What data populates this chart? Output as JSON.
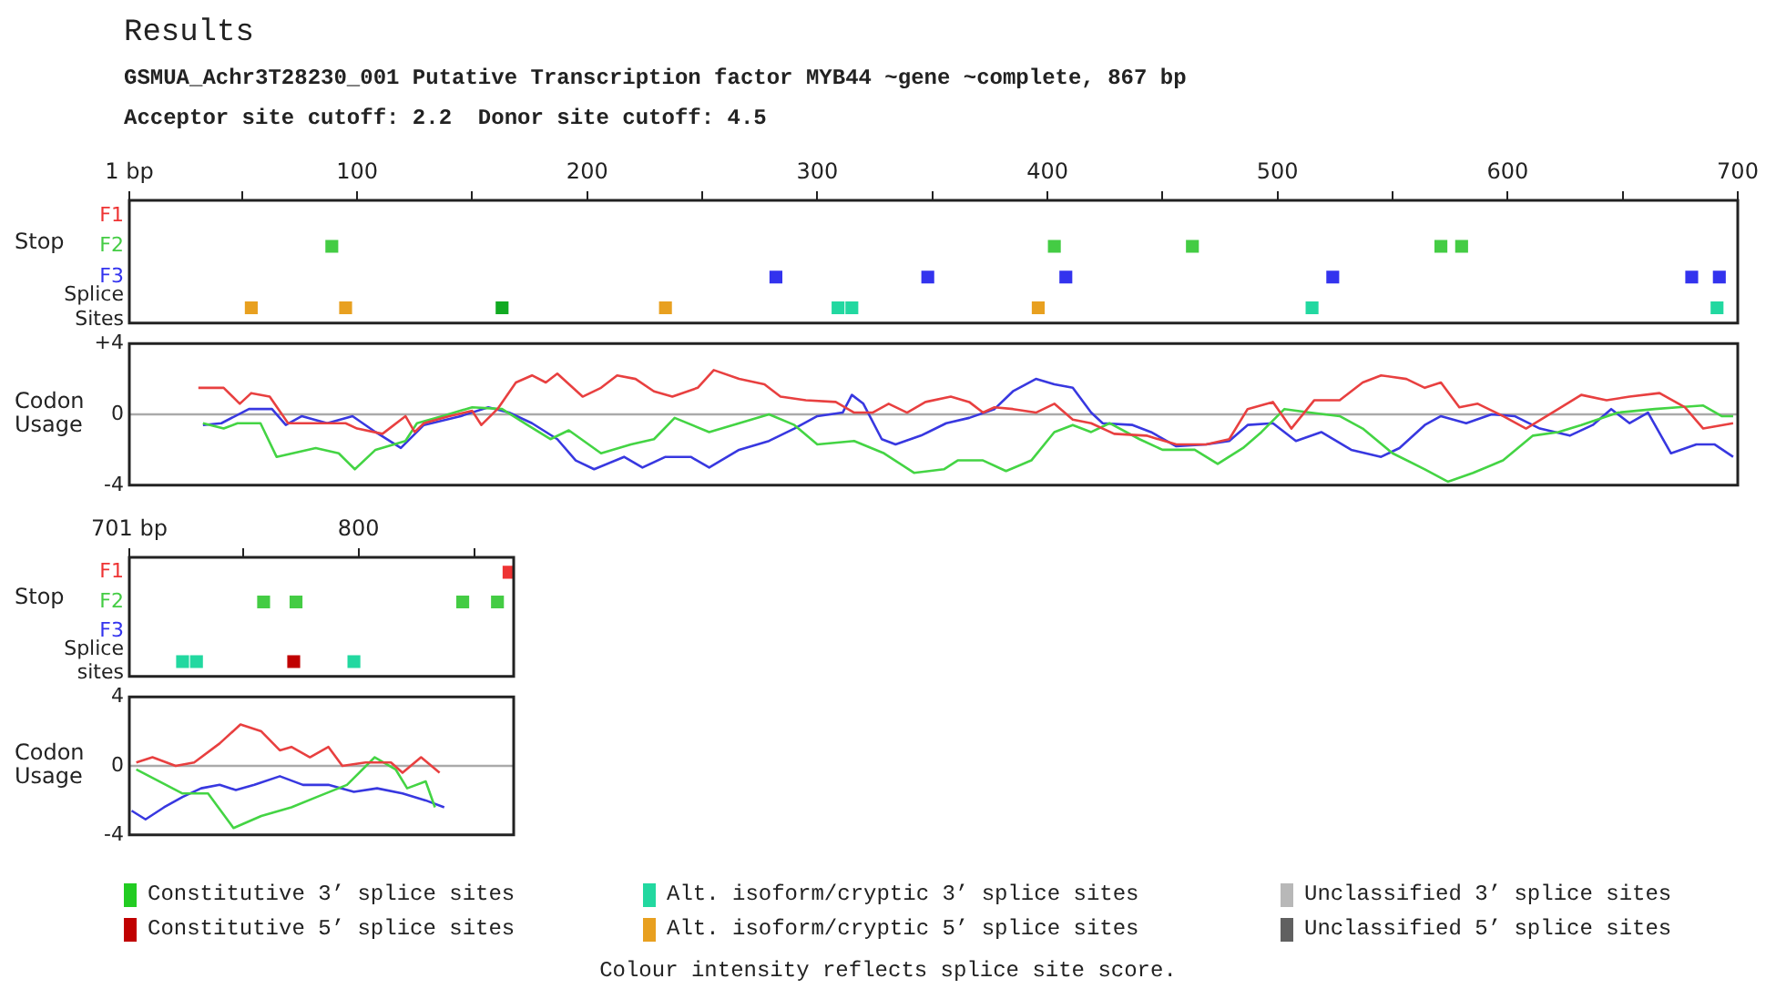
{
  "chart_data": [
    {
      "type": "scatter",
      "orientation": "horizontal",
      "title": "Results",
      "subtitle": "GSMUA_Achr3T28230_001 Putative Transcription factor MYB44 ~gene ~complete, 867 bp\nAcceptor site cutoff: 2.2  Donor site cutoff: 4.5",
      "ylabel": "Stop",
      "categories": [
        "F1",
        "F2",
        "F3",
        "Splice Sites"
      ],
      "xlim": [
        1,
        700
      ],
      "xticks": [
        {
          "value": 1,
          "label": "1 bp"
        },
        {
          "value": 50,
          "label": null
        },
        100,
        {
          "value": 150,
          "label": null
        },
        200,
        {
          "value": 250,
          "label": null
        },
        300,
        {
          "value": 350,
          "label": null
        },
        400,
        {
          "value": 450,
          "label": null
        },
        500,
        {
          "value": 550,
          "label": null
        },
        600,
        {
          "value": 650,
          "label": null
        },
        700
      ],
      "marker": "square",
      "series": [
        {
          "color": "#ee3333",
          "values": [
            null,
            null,
            null,
            null
          ]
        },
        {
          "color": "#44cc44",
          "x": [
            "F2",
            "F2",
            "F2",
            "F2",
            "F2"
          ],
          "values": [
            89,
            403,
            463,
            571,
            580
          ]
        },
        {
          "color": "#3333ee",
          "x": [
            "F3",
            "F3",
            "F3",
            "F3",
            "F3",
            "F3"
          ],
          "values": [
            282,
            348,
            408,
            524,
            680,
            692
          ]
        },
        {
          "color": "#11aa22",
          "marker": "square",
          "x": [
            "Splice Sites"
          ],
          "values": [
            163
          ]
        },
        {
          "color": "#22d8a0",
          "marker": "square",
          "x": [
            "Splice Sites",
            "Splice Sites",
            "Splice Sites",
            "Splice Sites"
          ],
          "values": [
            309,
            315,
            515,
            691
          ]
        },
        {
          "color": "#e8a020",
          "marker": "square",
          "x": [
            "Splice Sites",
            "Splice Sites",
            "Splice Sites",
            "Splice Sites"
          ],
          "values": [
            54,
            95,
            234,
            396
          ]
        }
      ]
    },
    {
      "type": "line",
      "ylabel": "Codon Usage",
      "xlim": [
        1,
        700
      ],
      "ylim": [
        -4,
        4
      ],
      "yticks": [
        {
          "value": 4,
          "label": "+4"
        },
        0,
        -4
      ],
      "tick_labels": "y",
      "ref_lines": [
        {
          "axis": "y",
          "value": 0,
          "color": "#aaaaaa"
        }
      ],
      "series": [
        {
          "color": "#e84040",
          "x": [
            31,
            42,
            49,
            54,
            62,
            70,
            82,
            95,
            100,
            111,
            121,
            125,
            129,
            140,
            150,
            154,
            161,
            169,
            176,
            182,
            187,
            198,
            206,
            213,
            221,
            229,
            237,
            248,
            255,
            266,
            277,
            284,
            295,
            308,
            316,
            324,
            331,
            339,
            347,
            358,
            366,
            372,
            377,
            385,
            395,
            403,
            411,
            419,
            429,
            443,
            456,
            469,
            479,
            487,
            498,
            506,
            516,
            527,
            537,
            545,
            556,
            564,
            571,
            579,
            587,
            598,
            608,
            622,
            632,
            643,
            653,
            666,
            677,
            685,
            698
          ],
          "values": [
            1.5,
            1.5,
            0.6,
            1.2,
            1,
            -0.5,
            -0.5,
            -0.5,
            -0.8,
            -1.1,
            -0.1,
            -1,
            -0.5,
            -0.1,
            0.2,
            -0.6,
            0.3,
            1.8,
            2.2,
            1.8,
            2.3,
            1,
            1.5,
            2.2,
            2,
            1.3,
            1,
            1.5,
            2.5,
            2,
            1.7,
            1,
            0.8,
            0.7,
            0.1,
            0.1,
            0.6,
            0.1,
            0.7,
            1,
            0.7,
            0.1,
            0.4,
            0.3,
            0.1,
            0.6,
            -0.3,
            -0.5,
            -1.1,
            -1.2,
            -1.7,
            -1.7,
            -1.4,
            0.3,
            0.7,
            -0.8,
            0.8,
            0.8,
            1.8,
            2.2,
            2,
            1.5,
            1.8,
            0.4,
            0.6,
            -0.1,
            -0.8,
            0.3,
            1.1,
            0.8,
            1,
            1.2,
            0.4,
            -0.8,
            -0.5
          ]
        },
        {
          "color": "#44d444",
          "x": [
            33,
            42,
            48,
            58,
            65,
            82,
            92,
            99,
            108,
            121,
            126,
            137,
            150,
            163,
            174,
            184,
            192,
            206,
            219,
            229,
            238,
            253,
            266,
            279,
            290,
            300,
            316,
            329,
            342,
            355,
            361,
            372,
            382,
            393,
            403,
            411,
            419,
            427,
            440,
            450,
            464,
            474,
            485,
            493,
            503,
            514,
            527,
            537,
            550,
            564,
            574,
            585,
            598,
            611,
            622,
            632,
            648,
            664,
            674,
            685,
            693,
            698
          ],
          "values": [
            -0.5,
            -0.8,
            -0.5,
            -0.5,
            -2.4,
            -1.9,
            -2.2,
            -3.1,
            -2,
            -1.5,
            -0.5,
            -0.1,
            0.4,
            0.3,
            -0.6,
            -1.4,
            -0.9,
            -2.2,
            -1.7,
            -1.4,
            -0.2,
            -1,
            -0.5,
            0,
            -0.6,
            -1.7,
            -1.5,
            -2.2,
            -3.3,
            -3.1,
            -2.6,
            -2.6,
            -3.2,
            -2.6,
            -1,
            -0.6,
            -1,
            -0.5,
            -1.4,
            -2,
            -2,
            -2.8,
            -1.9,
            -1,
            0.3,
            0.1,
            -0.1,
            -0.8,
            -2.2,
            -3.1,
            -3.8,
            -3.3,
            -2.6,
            -1.2,
            -1,
            -0.6,
            0.1,
            0.3,
            0.4,
            0.5,
            -0.1,
            -0.1
          ]
        },
        {
          "color": "#3838e0",
          "x": [
            33,
            41,
            53,
            63,
            69,
            76,
            87,
            98,
            108,
            119,
            129,
            145,
            157,
            166,
            176,
            187,
            195,
            203,
            216,
            224,
            234,
            245,
            253,
            266,
            279,
            290,
            300,
            311,
            315,
            320,
            328,
            334,
            345,
            356,
            366,
            377,
            385,
            395,
            403,
            411,
            419,
            424,
            437,
            445,
            456,
            469,
            479,
            487,
            498,
            508,
            519,
            532,
            545,
            553,
            564,
            571,
            582,
            593,
            603,
            614,
            627,
            637,
            645,
            653,
            661,
            671,
            682,
            690,
            698
          ],
          "values": [
            -0.6,
            -0.5,
            0.3,
            0.3,
            -0.6,
            -0.1,
            -0.5,
            -0.1,
            -1,
            -1.9,
            -0.6,
            -0.1,
            0.4,
            0.1,
            -0.5,
            -1.4,
            -2.6,
            -3.1,
            -2.4,
            -3,
            -2.4,
            -2.4,
            -3,
            -2,
            -1.5,
            -0.8,
            -0.1,
            0.1,
            1.1,
            0.6,
            -1.4,
            -1.7,
            -1.2,
            -0.5,
            -0.2,
            0.3,
            1.3,
            2,
            1.7,
            1.5,
            0.1,
            -0.5,
            -0.6,
            -1,
            -1.8,
            -1.7,
            -1.5,
            -0.6,
            -0.5,
            -1.5,
            -1,
            -2,
            -2.4,
            -1.9,
            -0.6,
            -0.1,
            -0.5,
            0,
            -0.1,
            -0.8,
            -1.2,
            -0.6,
            0.3,
            -0.5,
            0.1,
            -2.2,
            -1.7,
            -1.7,
            -2.4
          ]
        }
      ]
    },
    {
      "type": "scatter",
      "orientation": "horizontal",
      "ylabel": "Stop",
      "annotations": [
        "Colour intensity reflects splice site score."
      ],
      "categories": [
        "F1",
        "F2",
        "F3",
        "Splice sites"
      ],
      "xlim": [
        701,
        867
      ],
      "xticks": [
        {
          "value": 701,
          "label": "701 bp"
        },
        {
          "value": 750,
          "label": null
        },
        800,
        {
          "value": 850,
          "label": null
        }
      ],
      "marker": "square",
      "legend": "bottom",
      "series": [
        {
          "color": "#ee3333",
          "x": [
            "F1"
          ],
          "values": [
            865
          ]
        },
        {
          "color": "#44cc44",
          "x": [
            "F2",
            "F2",
            "F2",
            "F2"
          ],
          "values": [
            759,
            773,
            845,
            860
          ]
        },
        {
          "color": "#3333ee",
          "values": [
            null,
            null,
            null,
            null
          ]
        },
        {
          "name": "Constitutive 3’ splice sites",
          "color": "#22cc22",
          "marker": "square",
          "values": [
            null,
            null,
            null,
            null
          ]
        },
        {
          "name": "Alt. isoform/cryptic 3’ splice sites",
          "color": "#22d8a0",
          "marker": "square",
          "x": [
            "Splice sites",
            "Splice sites",
            "Splice sites"
          ],
          "values": [
            724,
            730,
            798
          ]
        },
        {
          "name": "Unclassified 3’ splice sites",
          "color": "#b8b8b8",
          "marker": "square",
          "values": [
            null,
            null,
            null,
            null
          ]
        },
        {
          "name": "Constitutive 5’ splice sites",
          "color": "#c00000",
          "marker": "square",
          "x": [
            "Splice sites"
          ],
          "values": [
            772
          ]
        },
        {
          "name": "Alt. isoform/cryptic 5’ splice sites",
          "color": "#e8a020",
          "marker": "square",
          "values": [
            null,
            null,
            null,
            null
          ]
        },
        {
          "name": "Unclassified 5’ splice sites",
          "color": "#606060",
          "marker": "square",
          "values": [
            null,
            null,
            null,
            null
          ]
        }
      ]
    },
    {
      "type": "line",
      "ylabel": "Codon Usage",
      "xlim": [
        701,
        867
      ],
      "ylim": [
        -4,
        4
      ],
      "yticks": [
        4,
        0,
        -4
      ],
      "tick_labels": "y",
      "ref_lines": [
        {
          "axis": "y",
          "value": 0,
          "color": "#aaaaaa"
        }
      ],
      "series": [
        {
          "color": "#e84040",
          "x": [
            704,
            711,
            721,
            729,
            740,
            749,
            758,
            766,
            771,
            779,
            787,
            793,
            803,
            814,
            819,
            827,
            835
          ],
          "values": [
            0.2,
            0.5,
            0,
            0.2,
            1.3,
            2.4,
            2,
            0.9,
            1.1,
            0.5,
            1.1,
            0,
            0.2,
            0.2,
            -0.4,
            0.5,
            -0.4
          ]
        },
        {
          "color": "#44d444",
          "x": [
            704,
            714,
            724,
            735,
            746,
            758,
            771,
            782,
            795,
            807,
            816,
            821,
            829,
            833
          ],
          "values": [
            -0.2,
            -0.9,
            -1.6,
            -1.6,
            -3.6,
            -2.9,
            -2.4,
            -1.8,
            -1.1,
            0.5,
            -0.2,
            -1.3,
            -0.9,
            -2.4
          ]
        },
        {
          "color": "#3838e0",
          "x": [
            702,
            708,
            716,
            724,
            732,
            740,
            747,
            755,
            766,
            776,
            787,
            798,
            808,
            819,
            829,
            837
          ],
          "values": [
            -2.6,
            -3.1,
            -2.4,
            -1.8,
            -1.3,
            -1.1,
            -1.4,
            -1.1,
            -0.6,
            -1.1,
            -1.1,
            -1.5,
            -1.3,
            -1.6,
            -2,
            -2.4
          ]
        }
      ]
    }
  ]
}
